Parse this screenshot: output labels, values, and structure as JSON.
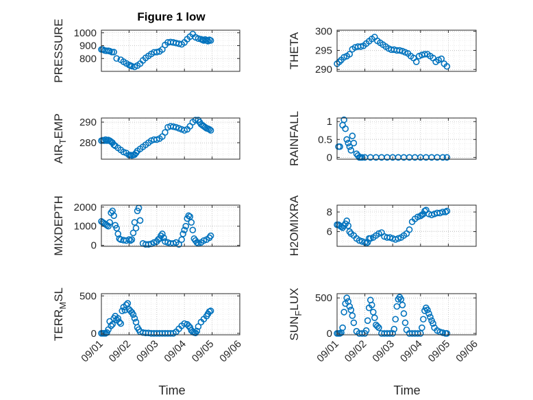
{
  "figure": {
    "title": "Figure 1 low",
    "xlabel": "Time",
    "x_ticks": [
      "09/01",
      "09/02",
      "09/03",
      "09/04",
      "09/05",
      "09/06"
    ],
    "marker_color": "#0072BD",
    "grid": "on (major and minor, dotted)"
  },
  "chart_data": [
    {
      "type": "scatter",
      "panel": "top-left",
      "ylabel": "PRESSURE",
      "yticks": [
        "800",
        "900",
        "1000"
      ],
      "ylim": [
        700,
        1020
      ],
      "xlim_days": [
        0,
        5
      ],
      "x": [
        0.0,
        0.05,
        0.12,
        0.18,
        0.25,
        0.3,
        0.38,
        0.45,
        0.55,
        0.7,
        0.8,
        0.9,
        1.0,
        1.05,
        1.1,
        1.2,
        1.3,
        1.4,
        1.5,
        1.6,
        1.7,
        1.8,
        1.9,
        2.0,
        2.1,
        2.2,
        2.3,
        2.4,
        2.5,
        2.6,
        2.7,
        2.8,
        2.9,
        3.0,
        3.1,
        3.2,
        3.3,
        3.4,
        3.5,
        3.6,
        3.65,
        3.7,
        3.75,
        3.8,
        3.85,
        3.9,
        3.95
      ],
      "y": [
        870,
        870,
        862,
        860,
        860,
        857,
        850,
        850,
        800,
        790,
        775,
        762,
        750,
        745,
        740,
        735,
        745,
        760,
        785,
        805,
        820,
        835,
        848,
        850,
        855,
        870,
        905,
        925,
        928,
        925,
        920,
        915,
        910,
        925,
        950,
        970,
        990,
        965,
        955,
        950,
        945,
        940,
        948,
        940,
        935,
        945,
        940
      ]
    },
    {
      "type": "scatter",
      "panel": "top-right",
      "ylabel": "THETA",
      "yticks": [
        "290",
        "295",
        "300"
      ],
      "ylim": [
        289.5,
        300.3
      ],
      "xlim_days": [
        0,
        5
      ],
      "x": [
        0.0,
        0.08,
        0.15,
        0.25,
        0.35,
        0.45,
        0.55,
        0.65,
        0.75,
        0.85,
        0.95,
        1.05,
        1.15,
        1.25,
        1.35,
        1.45,
        1.55,
        1.65,
        1.75,
        1.85,
        1.95,
        2.05,
        2.15,
        2.25,
        2.35,
        2.45,
        2.55,
        2.65,
        2.75,
        2.85,
        2.95,
        3.05,
        3.15,
        3.25,
        3.35,
        3.45,
        3.55,
        3.65,
        3.75,
        3.85,
        3.95
      ],
      "y": [
        291.5,
        292,
        292.5,
        293.2,
        293.5,
        294,
        295.3,
        295.8,
        296,
        296,
        296.2,
        296.8,
        297.4,
        298,
        298.5,
        297.5,
        297,
        296.5,
        296,
        295.5,
        295.2,
        295.2,
        295,
        295,
        294.8,
        294.5,
        294.2,
        293.5,
        293,
        292,
        293.5,
        293.8,
        294,
        294,
        293.5,
        293,
        292,
        292.5,
        292.8,
        291.5,
        290.8
      ]
    },
    {
      "type": "scatter",
      "panel": "middle-left-1",
      "ylabel": "AIR_TEMP",
      "yticks": [
        "280",
        "290"
      ],
      "ylim": [
        272,
        292
      ],
      "xlim_days": [
        0,
        5
      ],
      "x": [
        0.0,
        0.05,
        0.1,
        0.15,
        0.2,
        0.25,
        0.3,
        0.35,
        0.4,
        0.45,
        0.5,
        0.6,
        0.7,
        0.8,
        0.9,
        1.0,
        1.05,
        1.1,
        1.15,
        1.2,
        1.25,
        1.3,
        1.4,
        1.5,
        1.6,
        1.7,
        1.8,
        1.9,
        2.0,
        2.1,
        2.2,
        2.3,
        2.4,
        2.5,
        2.6,
        2.7,
        2.8,
        2.9,
        3.0,
        3.1,
        3.2,
        3.3,
        3.4,
        3.5,
        3.55,
        3.6,
        3.65,
        3.7,
        3.75,
        3.8,
        3.85,
        3.9,
        3.95
      ],
      "y": [
        281,
        281.2,
        281,
        281.5,
        281,
        281.3,
        281,
        280.5,
        280,
        279,
        278.5,
        277.5,
        276.5,
        275.5,
        275,
        274,
        274,
        273.8,
        274,
        274.2,
        275,
        276,
        277,
        278,
        279,
        280,
        281,
        281.5,
        281.5,
        282,
        283,
        285,
        287.5,
        288,
        287.8,
        287.5,
        287,
        286.5,
        286,
        286.5,
        288,
        290,
        291,
        291,
        290,
        289,
        288.5,
        288,
        287.5,
        287,
        286.8,
        286.5,
        286
      ]
    },
    {
      "type": "scatter",
      "panel": "middle-right-1",
      "ylabel": "RAINFALL",
      "yticks": [
        "0",
        "0.5",
        "1"
      ],
      "ylim": [
        -0.05,
        1.1
      ],
      "xlim_days": [
        0,
        5
      ],
      "x": [
        0.05,
        0.1,
        0.2,
        0.25,
        0.3,
        0.35,
        0.4,
        0.45,
        0.5,
        0.55,
        0.6,
        0.7,
        0.75,
        0.8,
        0.85,
        0.9,
        1.0,
        1.2,
        1.4,
        1.6,
        1.8,
        2.0,
        2.2,
        2.4,
        2.6,
        2.8,
        3.0,
        3.2,
        3.4,
        3.6,
        3.8,
        3.95
      ],
      "y": [
        0.3,
        0.3,
        0.9,
        1.05,
        0.8,
        0.5,
        0.4,
        0.3,
        0.2,
        0.6,
        0.4,
        0.1,
        0.05,
        0,
        0,
        0,
        0,
        0,
        0,
        0,
        0,
        0,
        0,
        0,
        0,
        0,
        0,
        0,
        0,
        0,
        0,
        0
      ]
    },
    {
      "type": "scatter",
      "panel": "middle-left-2",
      "ylabel": "MIXDEPTH",
      "yticks": [
        "0",
        "1000",
        "2000"
      ],
      "ylim": [
        -50,
        2100
      ],
      "xlim_days": [
        0,
        5
      ],
      "x": [
        0.0,
        0.05,
        0.1,
        0.15,
        0.2,
        0.25,
        0.3,
        0.35,
        0.4,
        0.45,
        0.5,
        0.55,
        0.6,
        0.65,
        0.7,
        0.8,
        0.9,
        1.0,
        1.05,
        1.1,
        1.15,
        1.2,
        1.25,
        1.3,
        1.35,
        1.4,
        1.5,
        1.6,
        1.7,
        1.8,
        1.9,
        2.0,
        2.05,
        2.1,
        2.15,
        2.2,
        2.25,
        2.3,
        2.4,
        2.5,
        2.6,
        2.7,
        2.8,
        2.9,
        2.95,
        3.0,
        3.05,
        3.1,
        3.15,
        3.2,
        3.25,
        3.3,
        3.35,
        3.4,
        3.45,
        3.5,
        3.6,
        3.7,
        3.8,
        3.9,
        3.95
      ],
      "y": [
        1250,
        1200,
        1150,
        1100,
        1050,
        1000,
        1200,
        1700,
        1800,
        1550,
        1050,
        900,
        600,
        350,
        300,
        270,
        250,
        300,
        250,
        300,
        650,
        1200,
        900,
        1800,
        1950,
        1300,
        100,
        50,
        50,
        80,
        150,
        200,
        300,
        350,
        500,
        600,
        400,
        200,
        150,
        100,
        100,
        150,
        50,
        300,
        600,
        800,
        1000,
        1400,
        1550,
        1500,
        1200,
        800,
        350,
        250,
        150,
        100,
        150,
        250,
        300,
        400,
        500
      ]
    },
    {
      "type": "scatter",
      "panel": "middle-right-2",
      "ylabel": "H2OMIXRA",
      "yticks": [
        "6",
        "8"
      ],
      "ylim": [
        4.5,
        8.7
      ],
      "xlim_days": [
        0,
        5
      ],
      "x": [
        0.0,
        0.05,
        0.1,
        0.15,
        0.2,
        0.25,
        0.3,
        0.35,
        0.4,
        0.45,
        0.5,
        0.6,
        0.7,
        0.8,
        0.9,
        1.0,
        1.05,
        1.1,
        1.15,
        1.2,
        1.3,
        1.4,
        1.5,
        1.6,
        1.7,
        1.8,
        1.9,
        2.0,
        2.1,
        2.2,
        2.3,
        2.4,
        2.5,
        2.6,
        2.7,
        2.8,
        2.9,
        3.0,
        3.05,
        3.1,
        3.15,
        3.2,
        3.3,
        3.4,
        3.5,
        3.6,
        3.7,
        3.8,
        3.9,
        3.95
      ],
      "y": [
        6.7,
        6.7,
        6.6,
        6.5,
        6.4,
        6.6,
        6.8,
        7.1,
        6.6,
        6.0,
        5.8,
        5.6,
        5.3,
        5.1,
        5.0,
        4.9,
        4.8,
        4.9,
        5.3,
        5.3,
        5.4,
        5.6,
        5.8,
        5.9,
        5.5,
        5.4,
        5.4,
        5.3,
        5.2,
        5.3,
        5.4,
        5.6,
        5.8,
        6.2,
        7.0,
        7.3,
        7.5,
        7.6,
        7.7,
        7.8,
        8.1,
        8.2,
        7.8,
        7.7,
        7.8,
        7.9,
        7.9,
        8.0,
        8.0,
        8.1
      ]
    },
    {
      "type": "scatter",
      "panel": "bottom-left",
      "ylabel": "TERR_MSL",
      "yticks": [
        "0",
        "500"
      ],
      "ylim": [
        -20,
        530
      ],
      "xlim_days": [
        0,
        5
      ],
      "x": [
        0.0,
        0.05,
        0.1,
        0.15,
        0.2,
        0.25,
        0.3,
        0.35,
        0.4,
        0.45,
        0.5,
        0.55,
        0.6,
        0.65,
        0.7,
        0.75,
        0.8,
        0.85,
        0.9,
        0.95,
        1.0,
        1.05,
        1.1,
        1.15,
        1.2,
        1.25,
        1.3,
        1.35,
        1.4,
        1.5,
        1.6,
        1.7,
        1.8,
        1.9,
        2.0,
        2.1,
        2.2,
        2.3,
        2.4,
        2.5,
        2.6,
        2.7,
        2.8,
        2.9,
        3.0,
        3.1,
        3.15,
        3.2,
        3.25,
        3.3,
        3.35,
        3.4,
        3.45,
        3.5,
        3.6,
        3.7,
        3.8,
        3.85,
        3.9,
        3.95
      ],
      "y": [
        0,
        0,
        0,
        0,
        10,
        50,
        160,
        100,
        120,
        200,
        230,
        180,
        200,
        150,
        130,
        300,
        350,
        310,
        380,
        400,
        320,
        300,
        280,
        250,
        200,
        150,
        80,
        50,
        20,
        10,
        5,
        5,
        0,
        0,
        0,
        0,
        0,
        0,
        0,
        0,
        0,
        20,
        60,
        100,
        130,
        120,
        100,
        80,
        40,
        20,
        10,
        5,
        30,
        90,
        150,
        190,
        230,
        260,
        290,
        300
      ]
    },
    {
      "type": "scatter",
      "panel": "bottom-right",
      "ylabel": "SUN_FLUX",
      "yticks": [
        "0",
        "500"
      ],
      "ylim": [
        -20,
        560
      ],
      "xlim_days": [
        0,
        5
      ],
      "x": [
        0.0,
        0.05,
        0.1,
        0.15,
        0.2,
        0.25,
        0.3,
        0.35,
        0.4,
        0.45,
        0.5,
        0.55,
        0.6,
        0.7,
        0.8,
        0.9,
        1.0,
        1.05,
        1.1,
        1.15,
        1.2,
        1.25,
        1.3,
        1.35,
        1.4,
        1.45,
        1.5,
        1.6,
        1.7,
        1.8,
        1.9,
        2.0,
        2.05,
        2.1,
        2.15,
        2.2,
        2.25,
        2.3,
        2.35,
        2.4,
        2.45,
        2.5,
        2.6,
        2.7,
        2.8,
        2.9,
        3.0,
        3.05,
        3.1,
        3.15,
        3.2,
        3.25,
        3.3,
        3.35,
        3.4,
        3.45,
        3.5,
        3.6,
        3.7,
        3.8,
        3.9,
        3.95
      ],
      "y": [
        0,
        0,
        0,
        10,
        80,
        300,
        420,
        500,
        450,
        380,
        330,
        250,
        150,
        30,
        0,
        0,
        0,
        40,
        180,
        360,
        470,
        400,
        300,
        220,
        120,
        100,
        80,
        0,
        0,
        0,
        0,
        0,
        60,
        200,
        380,
        480,
        510,
        480,
        400,
        280,
        150,
        50,
        0,
        0,
        0,
        0,
        0,
        80,
        200,
        320,
        360,
        330,
        280,
        230,
        180,
        140,
        80,
        40,
        20,
        10,
        0,
        0
      ]
    }
  ]
}
